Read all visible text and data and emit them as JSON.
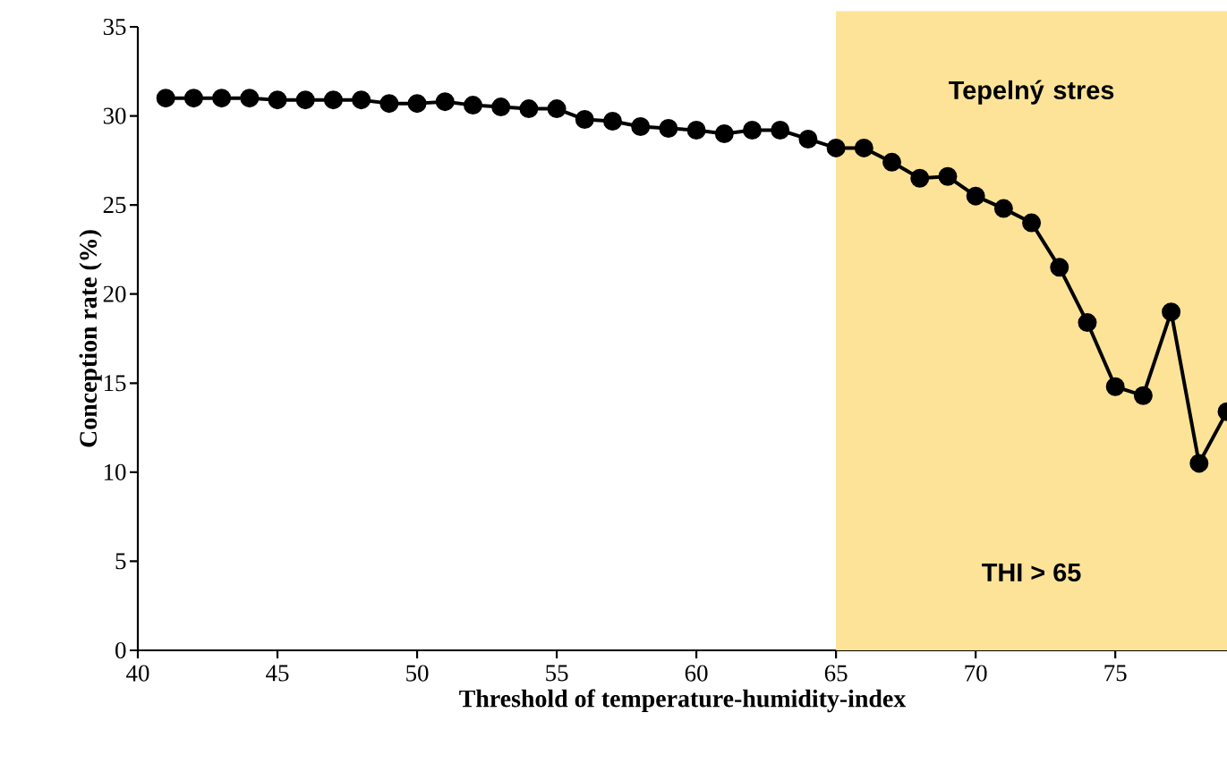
{
  "chart_data": {
    "type": "line",
    "xlabel": "Threshold of temperature-humidity-index",
    "ylabel": "Conception rate (%)",
    "x": [
      41,
      42,
      43,
      44,
      45,
      46,
      47,
      48,
      49,
      50,
      51,
      52,
      53,
      54,
      55,
      56,
      57,
      58,
      59,
      60,
      61,
      62,
      63,
      64,
      65,
      66,
      67,
      68,
      69,
      70,
      71,
      72,
      73,
      74,
      75,
      76,
      77,
      78,
      79
    ],
    "series": [
      {
        "color": "#000000",
        "values": [
          31.0,
          31.0,
          31.0,
          31.0,
          30.9,
          30.9,
          30.9,
          30.9,
          30.7,
          30.7,
          30.8,
          30.6,
          30.5,
          30.4,
          30.4,
          29.8,
          29.7,
          29.4,
          29.3,
          29.2,
          29.0,
          29.2,
          29.2,
          28.7,
          28.2,
          28.2,
          27.4,
          26.5,
          26.6,
          25.5,
          24.8,
          24.0,
          21.5,
          18.4,
          14.8,
          14.3,
          19.0,
          10.5,
          13.4
        ]
      }
    ],
    "xlim": [
      40,
      79
    ],
    "ylim": [
      0,
      35
    ],
    "xticks": [
      40,
      45,
      50,
      55,
      60,
      65,
      70,
      75
    ],
    "yticks": [
      0,
      5,
      10,
      15,
      20,
      25,
      30,
      35
    ],
    "bands": [
      {
        "axis": "x",
        "from": 65,
        "to": 79,
        "label": "Tepelný stres",
        "color": "#fde398"
      }
    ],
    "annotations": [
      "THI > 65"
    ],
    "marker": "circle",
    "line_style": "solid"
  }
}
